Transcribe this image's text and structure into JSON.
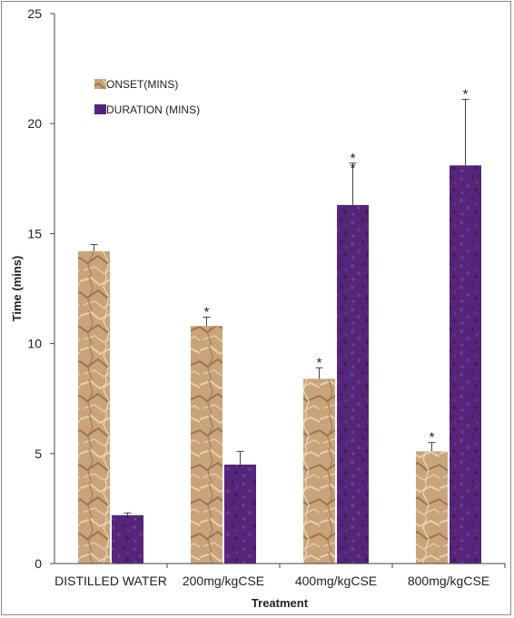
{
  "chart_data": {
    "type": "bar",
    "xlabel": "Treatment",
    "ylabel": "Time (mins)",
    "ylim": [
      0,
      25
    ],
    "yticks": [
      0,
      5,
      10,
      15,
      20,
      25
    ],
    "categories": [
      "DISTILLED WATER",
      "200mg/kgCSE",
      "400mg/kgCSE",
      "800mg/kgCSE"
    ],
    "series": [
      {
        "name": "ONSET(MINS)",
        "color": "#c9a47a",
        "pattern": "crumpled-paper",
        "values": [
          14.2,
          10.8,
          8.4,
          5.1
        ],
        "errors": [
          0.3,
          0.4,
          0.5,
          0.4
        ],
        "significance": [
          "",
          "*",
          "*",
          "*"
        ]
      },
      {
        "name": "DURATION (MINS)",
        "color": "#55257a",
        "pattern": "purple-mottled",
        "values": [
          2.2,
          4.5,
          16.3,
          18.1
        ],
        "errors": [
          0.1,
          0.6,
          1.9,
          3.0
        ],
        "significance": [
          "",
          "",
          "**",
          "*"
        ]
      }
    ],
    "legend_position": "top-left",
    "grid": false
  }
}
